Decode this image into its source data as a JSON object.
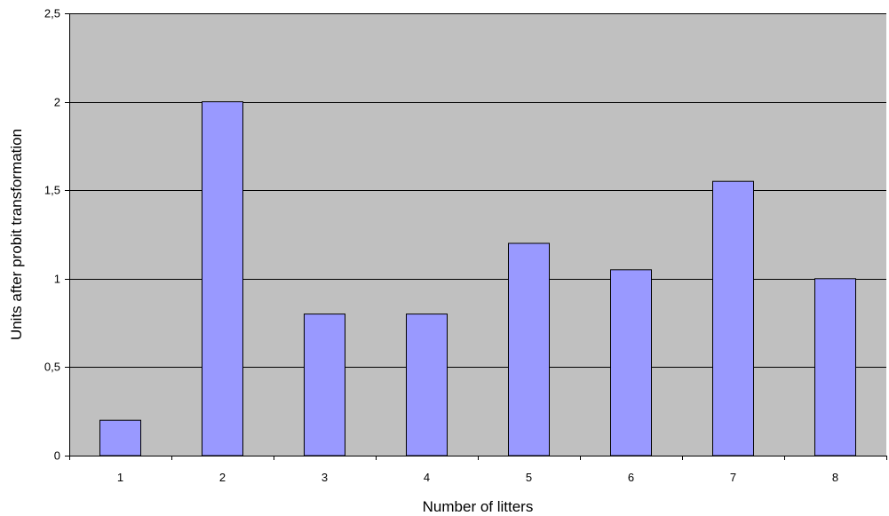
{
  "chart_data": {
    "type": "bar",
    "categories": [
      "1",
      "2",
      "3",
      "4",
      "5",
      "6",
      "7",
      "8"
    ],
    "values": [
      0.2,
      2.0,
      0.8,
      0.8,
      1.2,
      1.05,
      1.55,
      1.0
    ],
    "xlabel": "Number of litters",
    "ylabel": "Units after probit transformation",
    "ylim": [
      0,
      2.5
    ],
    "y_ticks": [
      "0",
      "0,5",
      "1",
      "1,5",
      "2",
      "2,5"
    ],
    "grid": true,
    "legend": "none",
    "colors": {
      "bar_fill": "#9999ff",
      "bar_stroke": "#000000",
      "plot_background": "#c0c0c0",
      "gridline": "#000000"
    }
  }
}
